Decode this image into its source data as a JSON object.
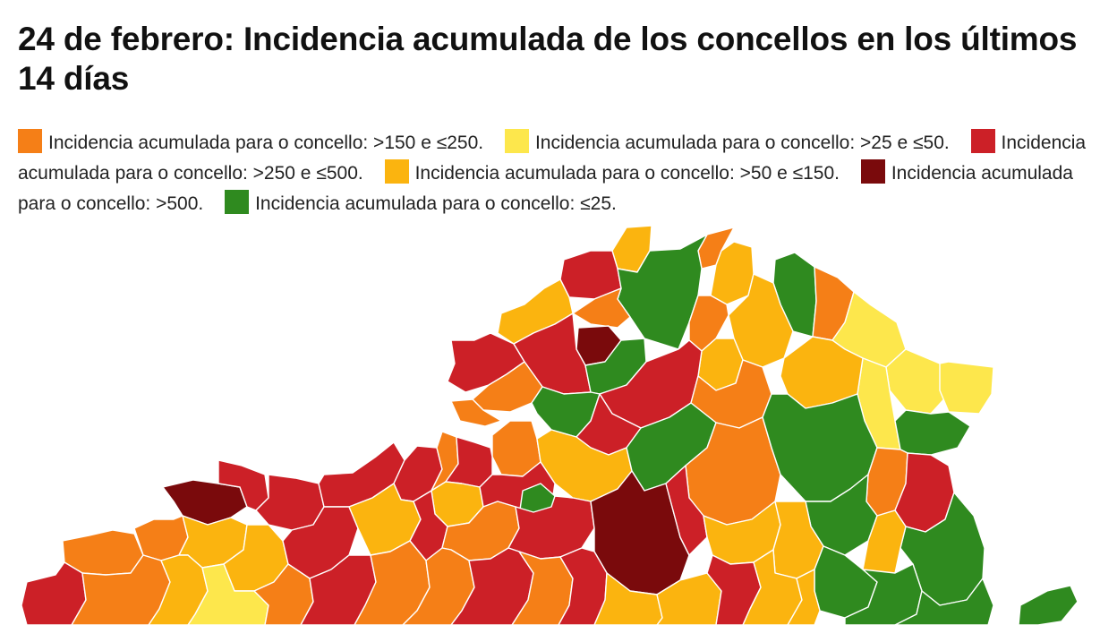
{
  "title": "24 de febrero: Incidencia acumulada de los concellos en los últimos 14 días",
  "legend": [
    {
      "label": "Incidencia acumulada para o concello: >150 e ≤250.",
      "color": "#f57f17",
      "category": "150-250"
    },
    {
      "label": "Incidencia acumulada para o concello: >25 e ≤50.",
      "color": "#fde74c",
      "category": "25-50"
    },
    {
      "label": "Incidencia acumulada para o concello: >250 e ≤500.",
      "color": "#cc2027",
      "category": "250-500"
    },
    {
      "label": "Incidencia acumulada para o concello: >50 e ≤150.",
      "color": "#fbb40f",
      "category": "50-150"
    },
    {
      "label": "Incidencia acumulada para o concello: >500.",
      "color": "#7a0a0c",
      "category": "500plus"
    },
    {
      "label": "Incidencia acumulada para o concello: ≤25.",
      "color": "#2f8a1f",
      "category": "le25"
    }
  ],
  "colors": {
    "150-250": "#f57f17",
    "25-50": "#fde74c",
    "250-500": "#cc2027",
    "50-150": "#fbb40f",
    "500plus": "#7a0a0c",
    "le25": "#2f8a1f"
  }
}
